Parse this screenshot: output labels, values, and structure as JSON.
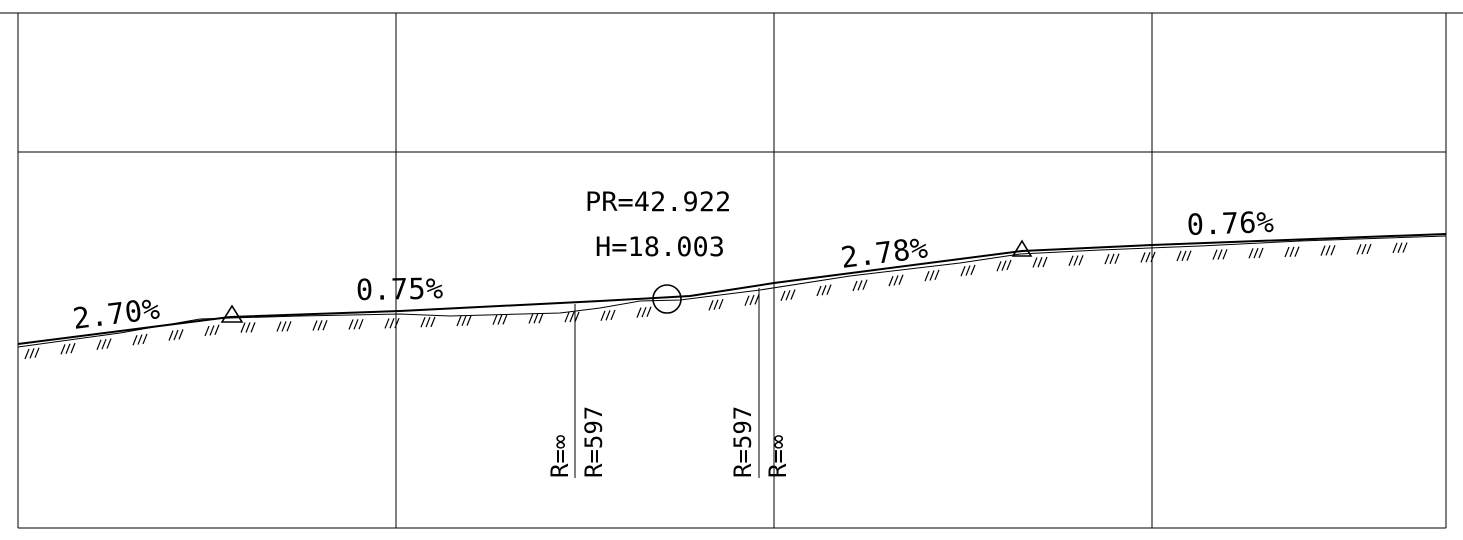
{
  "profile": {
    "grades": [
      {
        "name": "grade-1",
        "label": "2.70%"
      },
      {
        "name": "grade-2",
        "label": "0.75%"
      },
      {
        "name": "grade-3",
        "label": "2.78%"
      },
      {
        "name": "grade-4",
        "label": "0.76%"
      }
    ],
    "vertex": {
      "station_label": "PR=42.922",
      "elevation_label": "H=18.003"
    },
    "curve_labels": {
      "left_straight": "R=∞",
      "left_curve": "R=597",
      "right_curve": "R=597",
      "right_straight": "R=∞"
    }
  }
}
